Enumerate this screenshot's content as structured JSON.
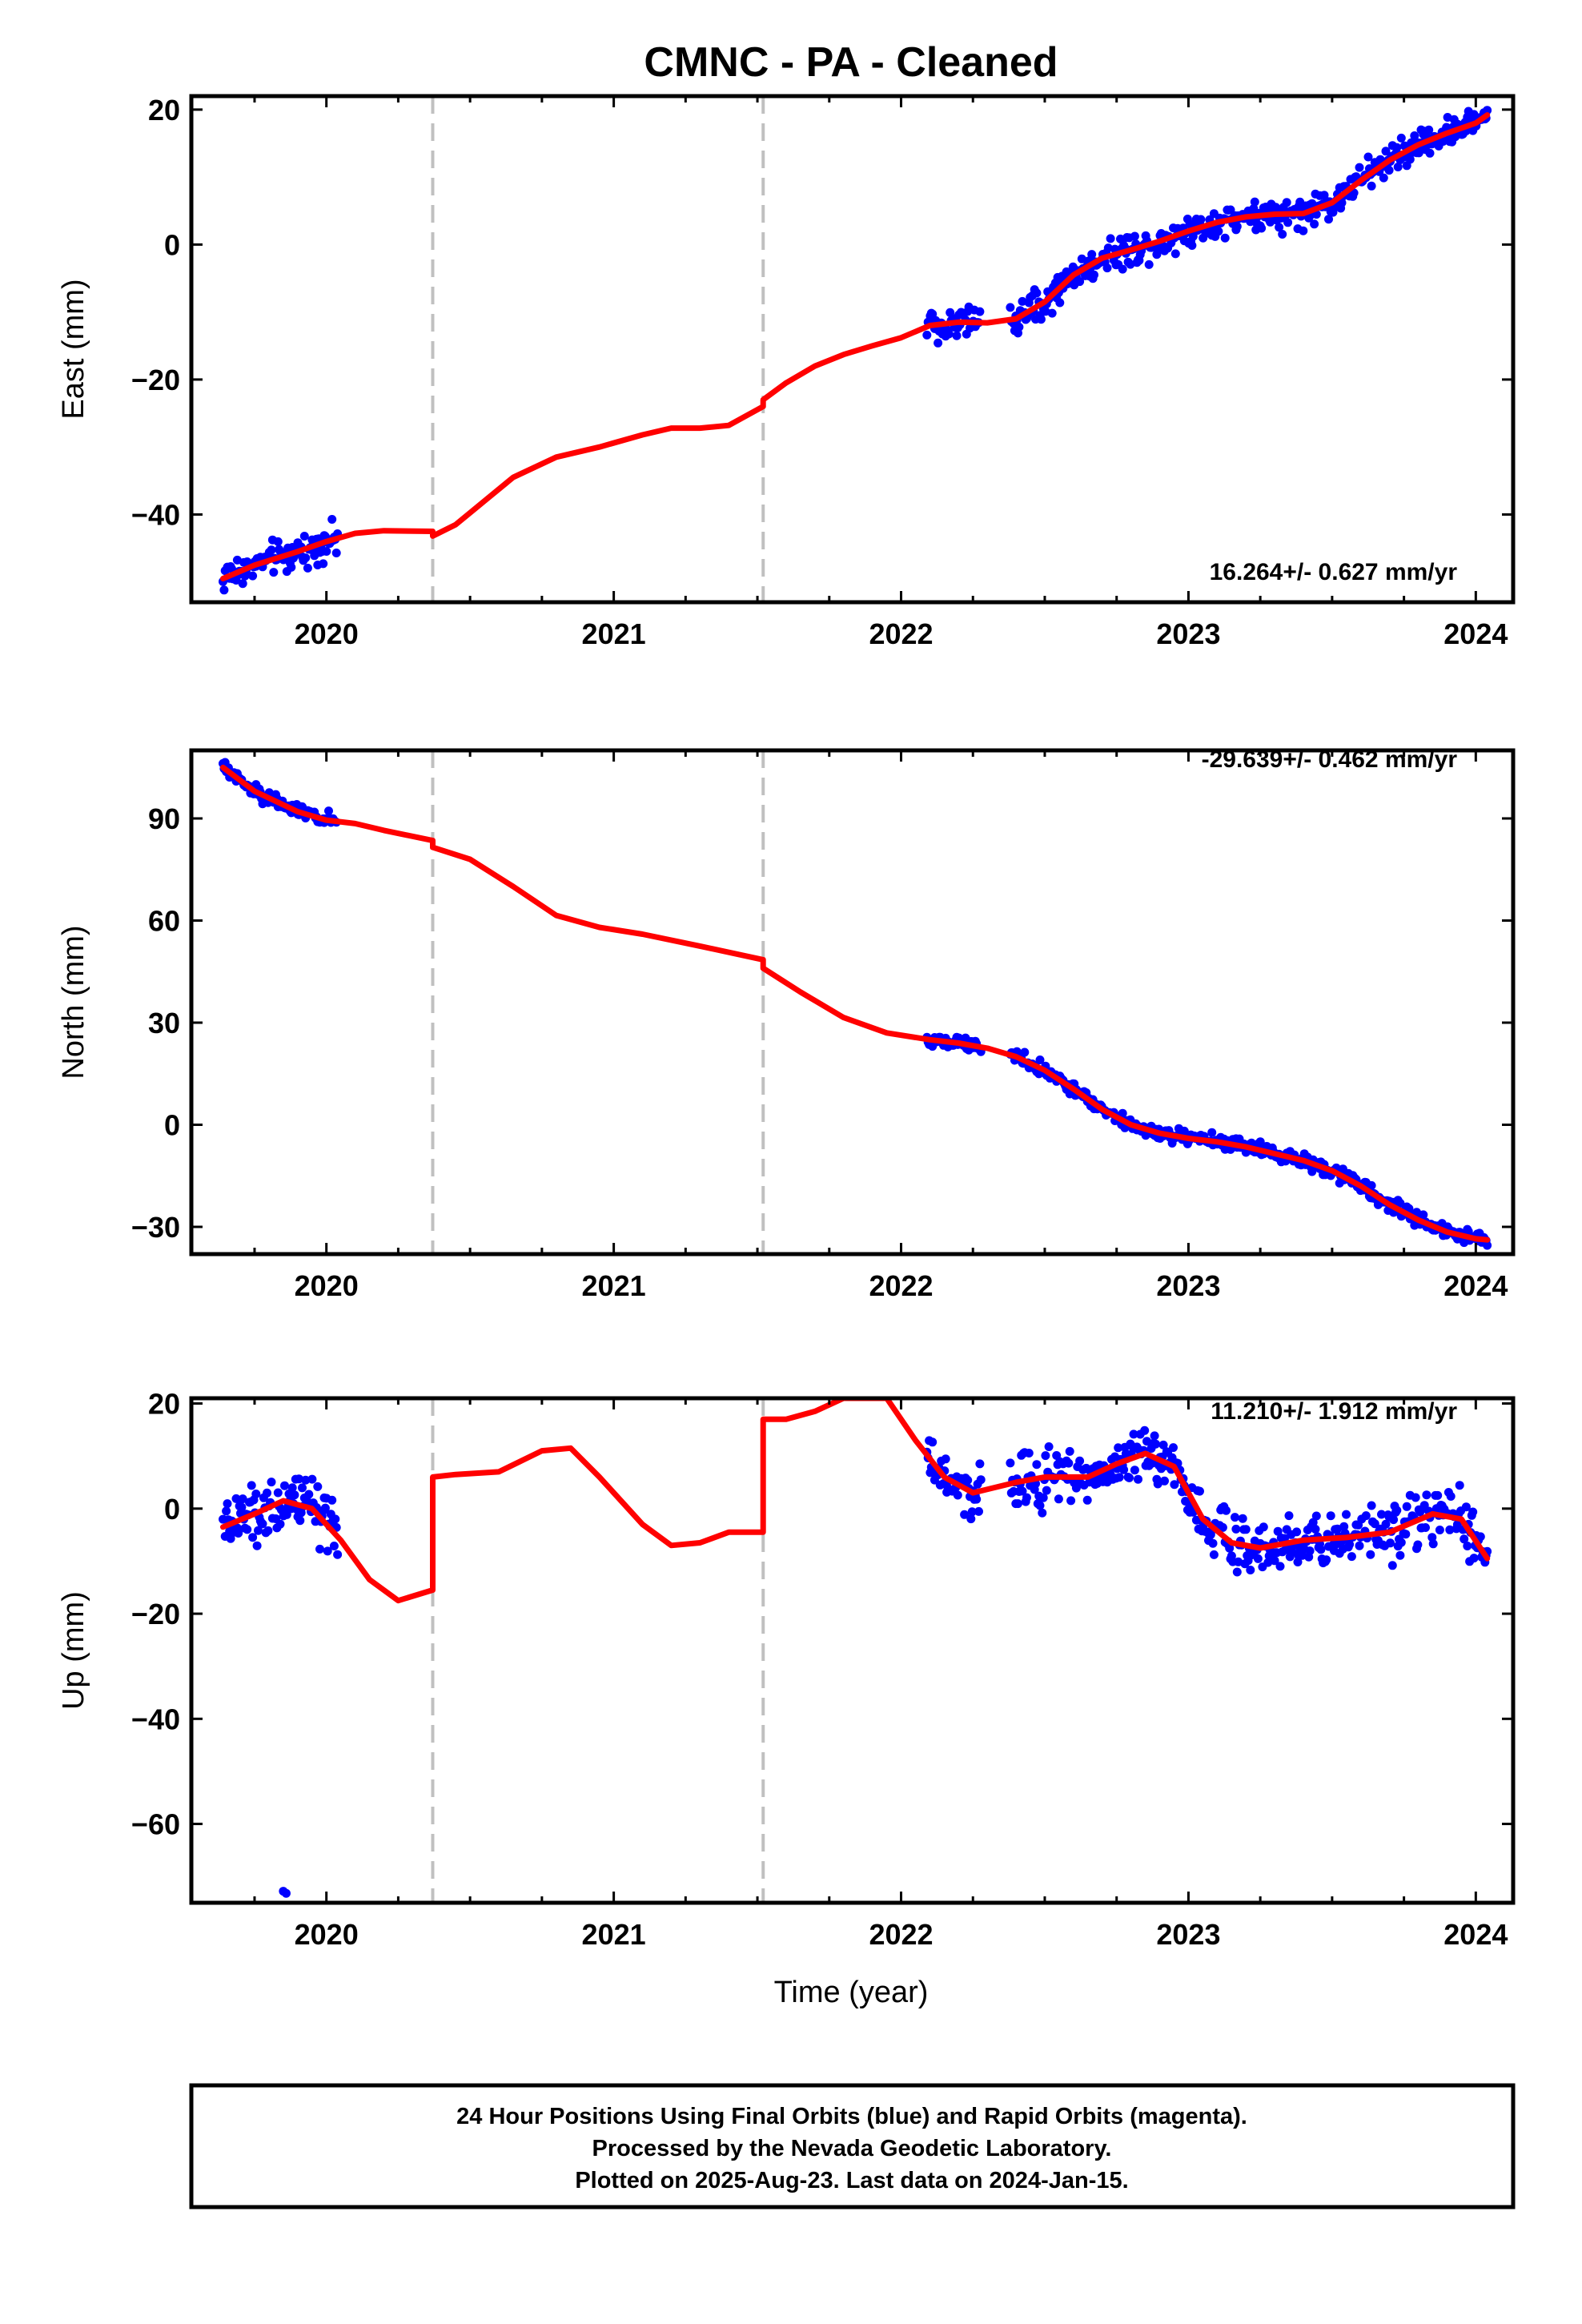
{
  "title": "CMNC  - PA - Cleaned",
  "xlabel": "Time (year)",
  "footer": {
    "line1": "24 Hour Positions Using Final Orbits (blue) and Rapid Orbits (magenta).",
    "line2": "Processed by the Nevada Geodetic Laboratory.",
    "line3": "Plotted on 2025-Aug-23. Last data on 2024-Jan-15."
  },
  "colors": {
    "observations": "#0000ff",
    "model": "#ff0000",
    "steps": "#c0c0c0",
    "frame": "#000000"
  },
  "chart_data": [
    {
      "type": "scatter",
      "ylabel": "East (mm)",
      "rate": "16.264+/- 0.627 mm/yr",
      "xlim": [
        2019.53,
        2024.13
      ],
      "ylim": [
        -53,
        22
      ],
      "yticks": [
        -40,
        -20,
        0,
        20
      ],
      "xticks": [
        2020,
        2021,
        2022,
        2023,
        2024
      ],
      "steps": [
        2020.37,
        2021.52
      ],
      "observation_spans": [
        [
          2019.64,
          2020.04
        ],
        [
          2022.09,
          2022.28
        ],
        [
          2022.38,
          2024.04
        ]
      ],
      "model": [
        [
          2019.64,
          -49.5
        ],
        [
          2019.75,
          -47.5
        ],
        [
          2019.9,
          -45.5
        ],
        [
          2020.0,
          -44.0
        ],
        [
          2020.1,
          -42.8
        ],
        [
          2020.2,
          -42.4
        ],
        [
          2020.37,
          -42.5
        ],
        [
          2020.37,
          -43.2
        ],
        [
          2020.45,
          -41.5
        ],
        [
          2020.55,
          -38.0
        ],
        [
          2020.65,
          -34.5
        ],
        [
          2020.8,
          -31.5
        ],
        [
          2020.95,
          -30.0
        ],
        [
          2021.1,
          -28.2
        ],
        [
          2021.2,
          -27.2
        ],
        [
          2021.3,
          -27.2
        ],
        [
          2021.4,
          -26.8
        ],
        [
          2021.52,
          -24.0
        ],
        [
          2021.52,
          -23.0
        ],
        [
          2021.6,
          -20.5
        ],
        [
          2021.7,
          -18.0
        ],
        [
          2021.8,
          -16.3
        ],
        [
          2021.9,
          -15.0
        ],
        [
          2022.0,
          -13.8
        ],
        [
          2022.1,
          -12.0
        ],
        [
          2022.2,
          -11.5
        ],
        [
          2022.3,
          -11.6
        ],
        [
          2022.4,
          -11.0
        ],
        [
          2022.5,
          -8.5
        ],
        [
          2022.6,
          -4.5
        ],
        [
          2022.7,
          -2.0
        ],
        [
          2022.8,
          -0.8
        ],
        [
          2022.9,
          0.5
        ],
        [
          2023.0,
          2.0
        ],
        [
          2023.1,
          3.3
        ],
        [
          2023.2,
          4.1
        ],
        [
          2023.3,
          4.5
        ],
        [
          2023.4,
          4.6
        ],
        [
          2023.5,
          6.2
        ],
        [
          2023.6,
          9.5
        ],
        [
          2023.7,
          12.5
        ],
        [
          2023.8,
          14.8
        ],
        [
          2023.9,
          16.5
        ],
        [
          2024.0,
          18.0
        ],
        [
          2024.04,
          19.2
        ]
      ],
      "noise": 1.4,
      "outliers": []
    },
    {
      "type": "scatter",
      "ylabel": "North (mm)",
      "rate": "-29.639+/- 0.462 mm/yr",
      "xlim": [
        2019.53,
        2024.13
      ],
      "ylim": [
        -38,
        110
      ],
      "yticks": [
        -30,
        0,
        30,
        60,
        90
      ],
      "xticks": [
        2020,
        2021,
        2022,
        2023,
        2024
      ],
      "steps": [
        2020.37,
        2021.52
      ],
      "observation_spans": [
        [
          2019.64,
          2020.04
        ],
        [
          2022.09,
          2022.28
        ],
        [
          2022.38,
          2024.04
        ]
      ],
      "model": [
        [
          2019.64,
          105.0
        ],
        [
          2019.75,
          98.0
        ],
        [
          2019.9,
          92.0
        ],
        [
          2020.0,
          89.5
        ],
        [
          2020.1,
          88.5
        ],
        [
          2020.2,
          86.5
        ],
        [
          2020.37,
          83.5
        ],
        [
          2020.37,
          81.5
        ],
        [
          2020.5,
          78.0
        ],
        [
          2020.65,
          70.0
        ],
        [
          2020.8,
          61.5
        ],
        [
          2020.95,
          58.0
        ],
        [
          2021.1,
          56.0
        ],
        [
          2021.3,
          52.5
        ],
        [
          2021.52,
          48.5
        ],
        [
          2021.52,
          46.0
        ],
        [
          2021.65,
          39.0
        ],
        [
          2021.8,
          31.5
        ],
        [
          2021.95,
          27.0
        ],
        [
          2022.1,
          25.0
        ],
        [
          2022.2,
          24.0
        ],
        [
          2022.3,
          22.5
        ],
        [
          2022.4,
          20.0
        ],
        [
          2022.5,
          16.0
        ],
        [
          2022.6,
          10.5
        ],
        [
          2022.7,
          4.5
        ],
        [
          2022.8,
          0.0
        ],
        [
          2022.9,
          -2.5
        ],
        [
          2023.0,
          -4.0
        ],
        [
          2023.1,
          -5.0
        ],
        [
          2023.2,
          -6.5
        ],
        [
          2023.3,
          -8.5
        ],
        [
          2023.4,
          -10.5
        ],
        [
          2023.5,
          -13.5
        ],
        [
          2023.6,
          -18.0
        ],
        [
          2023.7,
          -23.5
        ],
        [
          2023.8,
          -28.0
        ],
        [
          2023.9,
          -31.5
        ],
        [
          2024.0,
          -33.5
        ],
        [
          2024.04,
          -33.8
        ]
      ],
      "noise": 1.3,
      "outliers": []
    },
    {
      "type": "scatter",
      "ylabel": "Up (mm)",
      "rate": "11.210+/- 1.912 mm/yr",
      "xlim": [
        2019.53,
        2024.13
      ],
      "ylim": [
        -75,
        21
      ],
      "yticks": [
        -60,
        -40,
        -20,
        0,
        20
      ],
      "xticks": [
        2020,
        2021,
        2022,
        2023,
        2024
      ],
      "steps": [
        2020.37,
        2021.52
      ],
      "observation_spans": [
        [
          2019.64,
          2020.04
        ],
        [
          2022.09,
          2022.28
        ],
        [
          2022.38,
          2024.04
        ]
      ],
      "model": [
        [
          2019.64,
          -3.5
        ],
        [
          2019.75,
          -1.0
        ],
        [
          2019.85,
          1.5
        ],
        [
          2019.95,
          0.0
        ],
        [
          2020.05,
          -6.0
        ],
        [
          2020.15,
          -13.5
        ],
        [
          2020.25,
          -17.5
        ],
        [
          2020.37,
          -15.5
        ],
        [
          2020.37,
          6.0
        ],
        [
          2020.45,
          6.5
        ],
        [
          2020.6,
          7.0
        ],
        [
          2020.75,
          11.0
        ],
        [
          2020.85,
          11.5
        ],
        [
          2020.95,
          6.0
        ],
        [
          2021.1,
          -3.0
        ],
        [
          2021.2,
          -7.0
        ],
        [
          2021.3,
          -6.5
        ],
        [
          2021.4,
          -4.5
        ],
        [
          2021.52,
          -4.5
        ],
        [
          2021.52,
          17.0
        ],
        [
          2021.6,
          17.0
        ],
        [
          2021.7,
          18.5
        ],
        [
          2021.8,
          21.0
        ],
        [
          2021.95,
          21.0
        ],
        [
          2022.05,
          13.0
        ],
        [
          2022.15,
          6.0
        ],
        [
          2022.25,
          3.0
        ],
        [
          2022.4,
          5.0
        ],
        [
          2022.5,
          6.0
        ],
        [
          2022.65,
          6.0
        ],
        [
          2022.75,
          8.5
        ],
        [
          2022.85,
          10.5
        ],
        [
          2022.95,
          8.0
        ],
        [
          2023.05,
          -2.0
        ],
        [
          2023.15,
          -6.5
        ],
        [
          2023.25,
          -7.5
        ],
        [
          2023.4,
          -6.0
        ],
        [
          2023.55,
          -5.5
        ],
        [
          2023.7,
          -4.5
        ],
        [
          2023.85,
          -1.0
        ],
        [
          2023.95,
          -2.0
        ],
        [
          2024.04,
          -9.5
        ]
      ],
      "noise": 3.2,
      "outliers": [
        [
          2019.85,
          -72.8
        ],
        [
          2019.86,
          -73.2
        ]
      ]
    }
  ]
}
